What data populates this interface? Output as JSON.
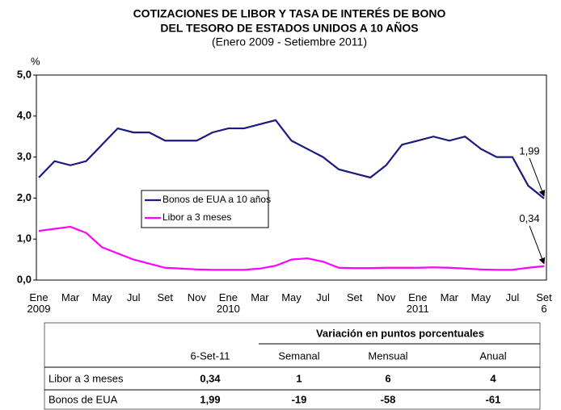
{
  "chart_data": {
    "type": "line",
    "title": [
      "COTIZACIONES DE LIBOR Y TASA DE INTERÉS DE BONO",
      "DEL TESORO DE ESTADOS UNIDOS A 10 AÑOS"
    ],
    "subtitle": "(Enero 2009 - Setiembre 2011)",
    "y_label": "%",
    "categories": [
      "Ene\n2009",
      null,
      "Mar",
      null,
      "May",
      null,
      "Jul",
      null,
      "Set",
      null,
      "Nov",
      null,
      "Ene\n2010",
      null,
      "Mar",
      null,
      "May",
      null,
      "Jul",
      null,
      "Set",
      null,
      "Nov",
      null,
      "Ene\n2011",
      null,
      "Mar",
      null,
      "May",
      null,
      "Jul",
      null,
      "Set\n6"
    ],
    "series": [
      {
        "name": "Bonos de EUA a 10 años",
        "color": "#1a1a80",
        "end_label": "1,99",
        "values": [
          2.5,
          2.9,
          2.8,
          2.9,
          3.3,
          3.7,
          3.6,
          3.6,
          3.4,
          3.4,
          3.4,
          3.6,
          3.7,
          3.7,
          3.8,
          3.9,
          3.4,
          3.2,
          3.0,
          2.7,
          2.6,
          2.5,
          2.8,
          3.3,
          3.4,
          3.5,
          3.4,
          3.5,
          3.2,
          3.0,
          3.0,
          2.3,
          1.99
        ]
      },
      {
        "name": "Libor a 3 meses",
        "color": "#ff00ff",
        "end_label": "0,34",
        "values": [
          1.2,
          1.25,
          1.3,
          1.15,
          0.8,
          0.65,
          0.5,
          0.4,
          0.3,
          0.28,
          0.26,
          0.25,
          0.25,
          0.25,
          0.28,
          0.35,
          0.5,
          0.53,
          0.45,
          0.3,
          0.29,
          0.29,
          0.3,
          0.3,
          0.3,
          0.31,
          0.3,
          0.28,
          0.26,
          0.25,
          0.25,
          0.3,
          0.34
        ]
      }
    ],
    "ylim": [
      0,
      5
    ],
    "yticks": [
      {
        "value": 0,
        "label": "0,0"
      },
      {
        "value": 1,
        "label": "1,0"
      },
      {
        "value": 2,
        "label": "2,0"
      },
      {
        "value": 3,
        "label": "3,0"
      },
      {
        "value": 4,
        "label": "4,0"
      },
      {
        "value": 5,
        "label": "5,0"
      }
    ],
    "grid": false,
    "legend": "center left"
  },
  "table": {
    "group_header": "Variación en puntos porcentuales",
    "columns": [
      "6-Set-11",
      "Semanal",
      "Mensual",
      "Anual"
    ],
    "rows": [
      [
        "Libor a 3 meses",
        "0,34",
        "1",
        "6",
        "4"
      ],
      [
        "Bonos de EUA",
        "1,99",
        "-19",
        "-58",
        "-61"
      ]
    ]
  }
}
